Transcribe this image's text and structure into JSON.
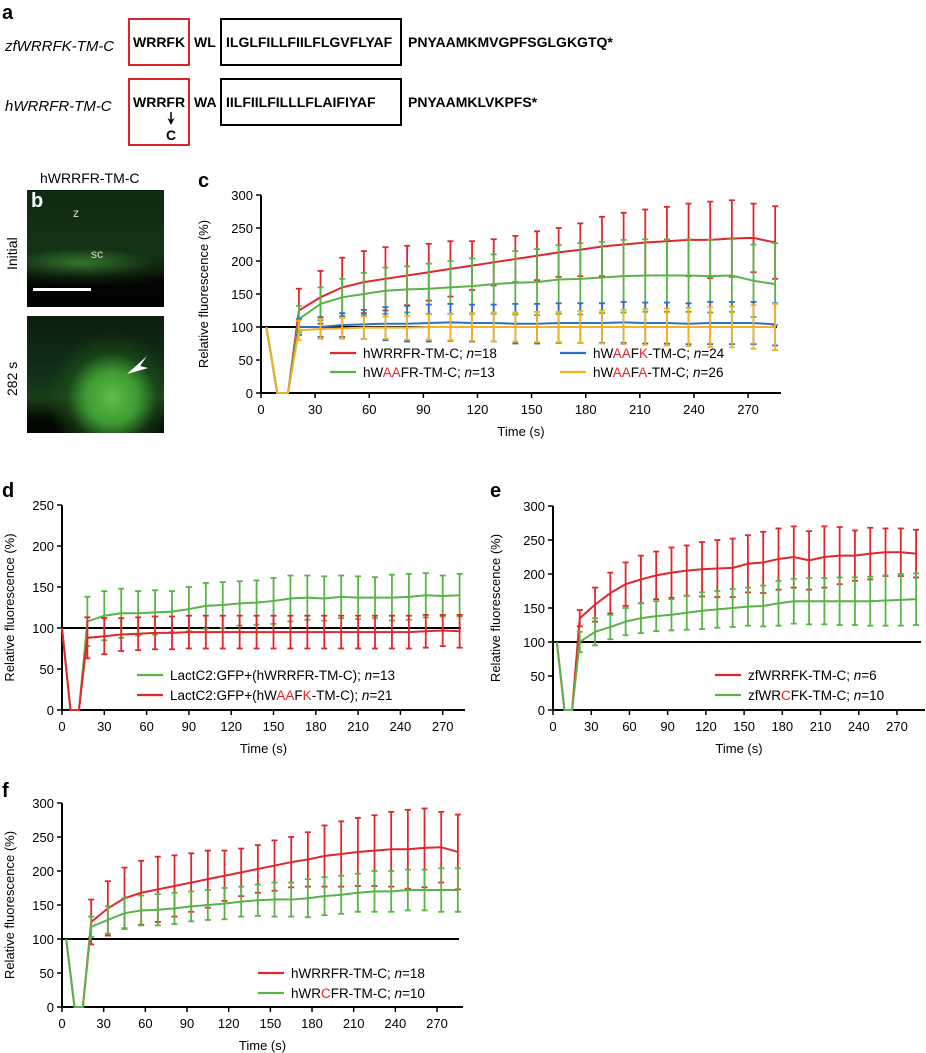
{
  "panel_labels": {
    "a": "a",
    "b": "b",
    "c": "c",
    "d": "d",
    "e": "e",
    "f": "f"
  },
  "panel_a": {
    "rows": [
      {
        "name": "zfWRRFK-TM-C",
        "motif": "WRRFK",
        "linker": "WL",
        "tm": "ILGLFILLFIILFLGVFLYAF",
        "tail": "PNYAAMKMVGPFSGLGKGTQ*"
      },
      {
        "name": "hWRRFR-TM-C",
        "motif": "WRRFR",
        "linker": "WA",
        "tm": "IILFIILFILLLFLAIFIYAF",
        "tail": "PNYAAMKLVKPFS*",
        "mutation": "C"
      }
    ]
  },
  "panel_b": {
    "title": "hWRRFR-TM-C",
    "rows": [
      {
        "label": "Initial",
        "marks": [
          "z",
          "sc"
        ]
      },
      {
        "label": "282 s"
      }
    ]
  },
  "chart_data": [
    {
      "id": "c",
      "type": "line",
      "title": "",
      "xlabel": "Time (s)",
      "ylabel": "Relative fluorescence (%)",
      "xlim": [
        0,
        288
      ],
      "ylim": [
        0,
        300
      ],
      "xticks": [
        0,
        30,
        60,
        90,
        120,
        150,
        180,
        210,
        240,
        270
      ],
      "yticks": [
        0,
        50,
        100,
        150,
        200,
        250,
        300
      ],
      "reference_line": 100,
      "legend": "bottom-inside",
      "error_bars": "SD",
      "x": [
        3,
        9,
        15,
        21,
        33,
        45,
        57,
        69,
        81,
        93,
        105,
        117,
        129,
        141,
        153,
        165,
        177,
        189,
        201,
        213,
        225,
        237,
        249,
        261,
        273,
        285
      ],
      "series": [
        {
          "label_parts": [
            {
              "t": "hWRRFR-TM-C; "
            }
          ],
          "n": "18",
          "color": "#e3262b",
          "mean": [
            100,
            0,
            0,
            125,
            145,
            160,
            168,
            173,
            178,
            183,
            188,
            193,
            198,
            203,
            208,
            213,
            217,
            222,
            225,
            228,
            230,
            232,
            232,
            234,
            235,
            228
          ],
          "err": [
            0,
            0,
            0,
            33,
            40,
            45,
            47,
            48,
            45,
            43,
            42,
            37,
            35,
            35,
            37,
            37,
            40,
            45,
            48,
            50,
            52,
            55,
            58,
            58,
            52,
            55
          ]
        },
        {
          "label_parts": [
            {
              "t": "hW"
            },
            {
              "t": "AA",
              "hl": true
            },
            {
              "t": "FR-TM-C; "
            }
          ],
          "n": "13",
          "color": "#5bb347",
          "mean": [
            100,
            0,
            0,
            112,
            135,
            145,
            150,
            155,
            157,
            158,
            160,
            162,
            165,
            167,
            168,
            172,
            173,
            175,
            177,
            178,
            178,
            178,
            177,
            178,
            170,
            165
          ],
          "err": [
            0,
            0,
            0,
            20,
            25,
            28,
            32,
            35,
            35,
            38,
            40,
            42,
            45,
            48,
            50,
            52,
            54,
            54,
            55,
            55,
            55,
            55,
            55,
            55,
            55,
            62
          ]
        },
        {
          "label_parts": [
            {
              "t": "hW"
            },
            {
              "t": "AA",
              "hl": true
            },
            {
              "t": "F"
            },
            {
              "t": "K",
              "hl": true
            },
            {
              "t": "-TM-C; "
            }
          ],
          "n": "24",
          "color": "#2f6fc9",
          "mean": [
            100,
            0,
            0,
            100,
            100,
            103,
            104,
            105,
            105,
            106,
            107,
            106,
            106,
            105,
            105,
            106,
            106,
            106,
            107,
            106,
            106,
            105,
            106,
            106,
            106,
            104
          ],
          "err": [
            0,
            0,
            0,
            12,
            15,
            18,
            22,
            25,
            27,
            28,
            28,
            28,
            28,
            30,
            30,
            30,
            30,
            30,
            31,
            31,
            31,
            31,
            32,
            32,
            32,
            32
          ]
        },
        {
          "label_parts": [
            {
              "t": "hW"
            },
            {
              "t": "AA",
              "hl": true
            },
            {
              "t": "F"
            },
            {
              "t": "A",
              "hl": true
            },
            {
              "t": "-TM-C; "
            }
          ],
          "n": "26",
          "color": "#f2b320",
          "mean": [
            100,
            0,
            0,
            95,
            97,
            98,
            99,
            99,
            99,
            100,
            100,
            100,
            100,
            100,
            100,
            100,
            100,
            100,
            100,
            100,
            100,
            100,
            100,
            100,
            100,
            100
          ],
          "err": [
            0,
            0,
            0,
            15,
            15,
            16,
            17,
            17,
            18,
            19,
            20,
            21,
            22,
            22,
            23,
            23,
            24,
            25,
            26,
            27,
            28,
            29,
            30,
            31,
            33,
            35
          ]
        }
      ]
    },
    {
      "id": "d",
      "type": "line",
      "title": "",
      "xlabel": "Time (s)",
      "ylabel": "Relative fluorescence (%)",
      "xlim": [
        0,
        288
      ],
      "ylim": [
        0,
        250
      ],
      "xticks": [
        0,
        30,
        60,
        90,
        120,
        150,
        180,
        210,
        240,
        270
      ],
      "yticks": [
        0,
        50,
        100,
        150,
        200,
        250
      ],
      "reference_line": 100,
      "legend": "bottom-right-inside",
      "error_bars": "SD",
      "x": [
        0,
        6,
        12,
        18,
        30,
        42,
        54,
        66,
        78,
        90,
        102,
        114,
        126,
        138,
        150,
        162,
        174,
        186,
        198,
        210,
        222,
        234,
        246,
        258,
        270,
        282
      ],
      "series": [
        {
          "label_parts": [
            {
              "t": "LactC2:GFP+(hWRRFR-TM-C); "
            }
          ],
          "n": "13",
          "color": "#5bb347",
          "mean": [
            100,
            0,
            0,
            108,
            115,
            118,
            118,
            119,
            120,
            123,
            127,
            128,
            130,
            131,
            133,
            136,
            137,
            136,
            138,
            137,
            137,
            137,
            138,
            140,
            139,
            140
          ],
          "err": [
            0,
            0,
            0,
            30,
            30,
            30,
            27,
            27,
            25,
            27,
            28,
            28,
            27,
            27,
            28,
            28,
            27,
            27,
            26,
            26,
            25,
            28,
            28,
            27,
            25,
            26
          ]
        },
        {
          "label_parts": [
            {
              "t": "LactC2:GFP+(hW"
            },
            {
              "t": "AA",
              "hl": true
            },
            {
              "t": "F"
            },
            {
              "t": "K",
              "hl": true
            },
            {
              "t": "-TM-C); "
            }
          ],
          "n": "21",
          "color": "#e3262b",
          "mean": [
            100,
            0,
            0,
            88,
            90,
            92,
            93,
            94,
            94,
            95,
            95,
            95,
            95,
            95,
            95,
            95,
            95,
            95,
            95,
            95,
            95,
            95,
            95,
            96,
            97,
            96
          ],
          "err": [
            0,
            0,
            0,
            25,
            22,
            20,
            20,
            20,
            20,
            20,
            20,
            20,
            20,
            20,
            20,
            20,
            20,
            20,
            20,
            20,
            20,
            20,
            20,
            20,
            19,
            20
          ]
        }
      ]
    },
    {
      "id": "e",
      "type": "line",
      "title": "",
      "xlabel": "Time (s)",
      "ylabel": "Relative fluorescence (%)",
      "xlim": [
        0,
        288
      ],
      "ylim": [
        0,
        300
      ],
      "xticks": [
        0,
        30,
        60,
        90,
        120,
        150,
        180,
        210,
        240,
        270
      ],
      "yticks": [
        0,
        50,
        100,
        150,
        200,
        250,
        300
      ],
      "reference_line": 100,
      "legend": "bottom-right-inside",
      "error_bars": "SD",
      "x": [
        3,
        9,
        15,
        21,
        33,
        45,
        57,
        69,
        81,
        93,
        105,
        117,
        129,
        141,
        153,
        165,
        177,
        189,
        201,
        213,
        225,
        237,
        249,
        261,
        273,
        285
      ],
      "series": [
        {
          "label_parts": [
            {
              "t": "zfWRRFK-TM-C; "
            }
          ],
          "n": "6",
          "color": "#e3262b",
          "mean": [
            100,
            0,
            0,
            135,
            155,
            172,
            185,
            192,
            198,
            202,
            205,
            207,
            208,
            209,
            215,
            217,
            222,
            225,
            220,
            225,
            227,
            227,
            230,
            232,
            232,
            230
          ],
          "err": [
            0,
            0,
            0,
            12,
            25,
            30,
            32,
            35,
            35,
            37,
            37,
            40,
            42,
            43,
            42,
            45,
            45,
            45,
            43,
            45,
            42,
            37,
            38,
            35,
            35,
            35
          ]
        },
        {
          "label_parts": [
            {
              "t": "zfWR"
            },
            {
              "t": "C",
              "hl": true
            },
            {
              "t": "FK-TM-C; "
            }
          ],
          "n": "10",
          "color": "#5bb347",
          "mean": [
            100,
            0,
            0,
            100,
            115,
            122,
            130,
            135,
            138,
            140,
            143,
            146,
            148,
            150,
            152,
            153,
            157,
            160,
            160,
            160,
            160,
            160,
            160,
            161,
            162,
            163
          ],
          "err": [
            0,
            0,
            0,
            15,
            20,
            18,
            20,
            22,
            22,
            23,
            25,
            27,
            27,
            28,
            28,
            30,
            33,
            33,
            34,
            34,
            35,
            35,
            36,
            37,
            38,
            38
          ]
        }
      ]
    },
    {
      "id": "f",
      "type": "line",
      "title": "",
      "xlabel": "Time (s)",
      "ylabel": "Relative fluorescence (%)",
      "xlim": [
        0,
        288
      ],
      "ylim": [
        0,
        300
      ],
      "xticks": [
        0,
        30,
        60,
        90,
        120,
        150,
        180,
        210,
        240,
        270
      ],
      "yticks": [
        0,
        50,
        100,
        150,
        200,
        250,
        300
      ],
      "reference_line": 100,
      "legend": "bottom-right-inside",
      "error_bars": "SD",
      "x": [
        3,
        9,
        15,
        21,
        33,
        45,
        57,
        69,
        81,
        93,
        105,
        117,
        129,
        141,
        153,
        165,
        177,
        189,
        201,
        213,
        225,
        237,
        249,
        261,
        273,
        285
      ],
      "series": [
        {
          "label_parts": [
            {
              "t": "hWRRFR-TM-C; "
            }
          ],
          "n": "18",
          "color": "#e3262b",
          "mean": [
            100,
            0,
            0,
            125,
            145,
            160,
            168,
            173,
            178,
            183,
            188,
            193,
            198,
            203,
            208,
            213,
            217,
            222,
            225,
            228,
            230,
            232,
            232,
            234,
            235,
            228
          ],
          "err": [
            0,
            0,
            0,
            33,
            40,
            45,
            47,
            48,
            45,
            43,
            42,
            37,
            35,
            35,
            37,
            37,
            40,
            45,
            48,
            50,
            52,
            55,
            58,
            58,
            52,
            55
          ]
        },
        {
          "label_parts": [
            {
              "t": "hWR"
            },
            {
              "t": "C",
              "hl": true
            },
            {
              "t": "FR-TM-C; "
            }
          ],
          "n": "10",
          "color": "#5bb347",
          "mean": [
            100,
            0,
            0,
            118,
            128,
            138,
            142,
            143,
            145,
            148,
            150,
            152,
            155,
            157,
            158,
            158,
            160,
            163,
            165,
            168,
            170,
            170,
            172,
            172,
            172,
            172
          ],
          "err": [
            0,
            0,
            0,
            15,
            20,
            22,
            22,
            23,
            23,
            22,
            22,
            23,
            22,
            23,
            25,
            25,
            28,
            28,
            28,
            28,
            30,
            30,
            30,
            30,
            32,
            32
          ]
        }
      ]
    }
  ],
  "colors": {
    "highlight": "#e3262b",
    "reference": "#000000"
  }
}
